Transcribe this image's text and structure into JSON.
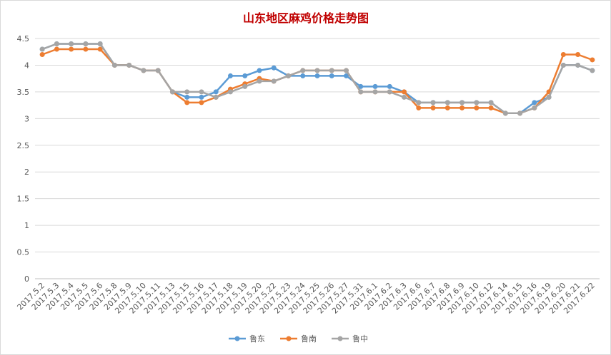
{
  "chart_data": {
    "type": "line",
    "title": "山东地区麻鸡价格走势图",
    "xlabel": "",
    "ylabel": "",
    "ylim": [
      0,
      4.5
    ],
    "yticks": [
      "0",
      "0.5",
      "1",
      "1.5",
      "2",
      "2.5",
      "3",
      "3.5",
      "4",
      "4.5"
    ],
    "grid": true,
    "legend_position": "bottom",
    "categories": [
      "2017.5.2",
      "2017.5.3",
      "2017.5.4",
      "2017.5.5",
      "2017.5.6",
      "2017.5.8",
      "2017.5.9",
      "2017.5.10",
      "2017.5.11",
      "2017.5.13",
      "2017.5.15",
      "2017.5.16",
      "2017.5.17",
      "2017.5.18",
      "2017.5.19",
      "2017.5.20",
      "2017.5.22",
      "2017.5.23",
      "2017.5.24",
      "2017.5.25",
      "2017.5.26",
      "2017.5.27",
      "2017.5.31",
      "2017.6.1",
      "2017.6.2",
      "2017.6.3",
      "2017.6.6",
      "2017.6.7",
      "2017.6.8",
      "2017.6.9",
      "2017.6.10",
      "2017.6.12",
      "2017.6.14",
      "2017.6.15",
      "2017.6.16",
      "2017.6.19",
      "2017.6.20",
      "2017.6.21",
      "2017.6.22"
    ],
    "series": [
      {
        "name": "鲁东",
        "color": "#5b9bd5",
        "values": [
          4.3,
          4.4,
          4.4,
          4.4,
          4.4,
          4.0,
          4.0,
          3.9,
          3.9,
          3.5,
          3.4,
          3.4,
          3.5,
          3.8,
          3.8,
          3.9,
          3.95,
          3.8,
          3.8,
          3.8,
          3.8,
          3.8,
          3.6,
          3.6,
          3.6,
          3.5,
          3.3,
          3.3,
          3.3,
          3.3,
          3.3,
          3.3,
          3.1,
          3.1,
          3.3,
          3.4,
          4.0,
          4.0,
          3.9
        ]
      },
      {
        "name": "鲁南",
        "color": "#ed7d31",
        "values": [
          4.2,
          4.3,
          4.3,
          4.3,
          4.3,
          4.0,
          4.0,
          3.9,
          3.9,
          3.5,
          3.3,
          3.3,
          3.4,
          3.55,
          3.65,
          3.75,
          3.7,
          3.8,
          3.9,
          3.9,
          3.9,
          3.9,
          3.5,
          3.5,
          3.5,
          3.5,
          3.2,
          3.2,
          3.2,
          3.2,
          3.2,
          3.2,
          3.1,
          3.1,
          3.2,
          3.5,
          4.2,
          4.2,
          4.1
        ]
      },
      {
        "name": "鲁中",
        "color": "#a5a5a5",
        "values": [
          4.3,
          4.4,
          4.4,
          4.4,
          4.4,
          4.0,
          4.0,
          3.9,
          3.9,
          3.5,
          3.5,
          3.5,
          3.4,
          3.5,
          3.6,
          3.7,
          3.7,
          3.8,
          3.9,
          3.9,
          3.9,
          3.9,
          3.5,
          3.5,
          3.5,
          3.4,
          3.3,
          3.3,
          3.3,
          3.3,
          3.3,
          3.3,
          3.1,
          3.1,
          3.2,
          3.4,
          4.0,
          4.0,
          3.9
        ]
      }
    ]
  }
}
